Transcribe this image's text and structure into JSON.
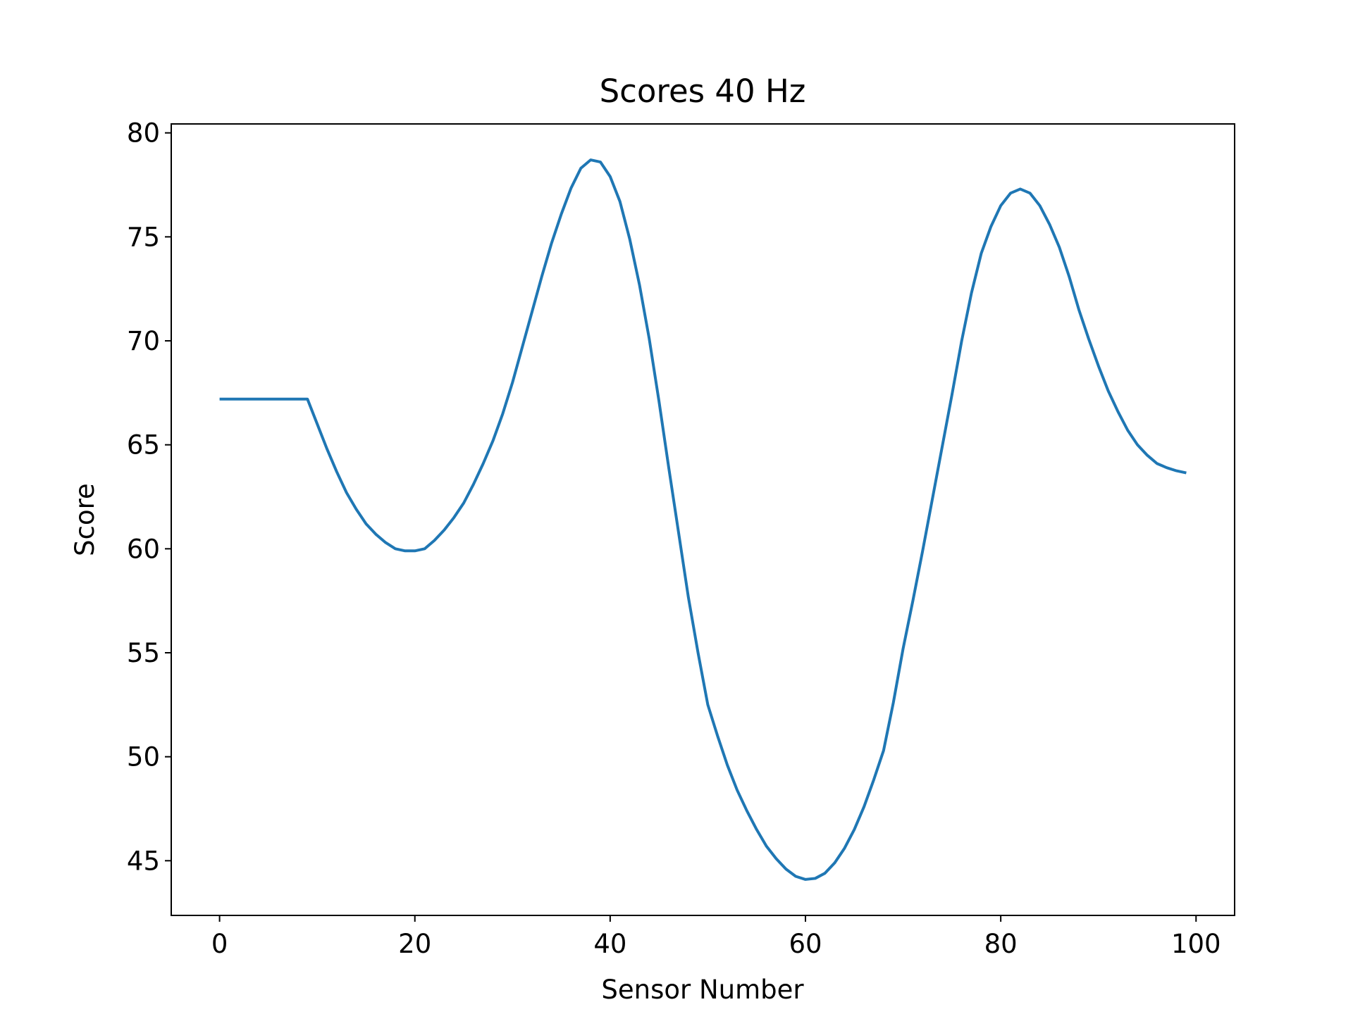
{
  "chart_data": {
    "type": "line",
    "title": "Scores 40 Hz",
    "x_label": "Sensor Number",
    "y_label": "Score",
    "x": [
      0,
      1,
      2,
      3,
      4,
      5,
      6,
      7,
      8,
      9,
      10,
      11,
      12,
      13,
      14,
      15,
      16,
      17,
      18,
      19,
      20,
      21,
      22,
      23,
      24,
      25,
      26,
      27,
      28,
      29,
      30,
      31,
      32,
      33,
      34,
      35,
      36,
      37,
      38,
      39,
      40,
      41,
      42,
      43,
      44,
      45,
      46,
      47,
      48,
      49,
      50,
      51,
      52,
      53,
      54,
      55,
      56,
      57,
      58,
      59,
      60,
      61,
      62,
      63,
      64,
      65,
      66,
      67,
      68,
      69,
      70,
      71,
      72,
      73,
      74,
      75,
      76,
      77,
      78,
      79,
      80,
      81,
      82,
      83,
      84,
      85,
      86,
      87,
      88,
      89,
      90,
      91,
      92,
      93,
      94,
      95,
      96,
      97,
      98,
      99
    ],
    "series": [
      {
        "name": "Score",
        "color": "#1f77b4",
        "values": [
          67.2,
          67.2,
          67.2,
          67.2,
          67.2,
          67.2,
          67.2,
          67.2,
          67.2,
          67.2,
          66.0,
          64.8,
          63.7,
          62.7,
          61.9,
          61.2,
          60.7,
          60.3,
          60.0,
          59.9,
          59.9,
          60.0,
          60.4,
          60.9,
          61.5,
          62.2,
          63.1,
          64.1,
          65.2,
          66.5,
          68.0,
          69.7,
          71.4,
          73.1,
          74.7,
          76.1,
          77.35,
          78.3,
          78.7,
          78.6,
          77.9,
          76.7,
          74.9,
          72.7,
          70.1,
          67.1,
          63.9,
          60.8,
          57.7,
          55.0,
          52.5,
          51.0,
          49.6,
          48.4,
          47.4,
          46.5,
          45.7,
          45.1,
          44.6,
          44.25,
          44.1,
          44.15,
          44.4,
          44.9,
          45.6,
          46.5,
          47.6,
          48.9,
          50.3,
          52.6,
          55.2,
          57.5,
          59.9,
          62.4,
          64.9,
          67.4,
          70.0,
          72.3,
          74.2,
          75.5,
          76.5,
          77.1,
          77.3,
          77.1,
          76.5,
          75.6,
          74.5,
          73.1,
          71.5,
          70.1,
          68.8,
          67.6,
          66.6,
          65.7,
          65.0,
          64.5,
          64.1,
          63.9,
          63.75,
          63.65
        ]
      }
    ],
    "xlim": [
      -4.95,
      103.95
    ],
    "ylim": [
      42.37,
      80.43
    ],
    "xticks": [
      0,
      20,
      40,
      60,
      80,
      100
    ],
    "yticks": [
      45,
      50,
      55,
      60,
      65,
      70,
      75,
      80
    ],
    "grid": false
  }
}
